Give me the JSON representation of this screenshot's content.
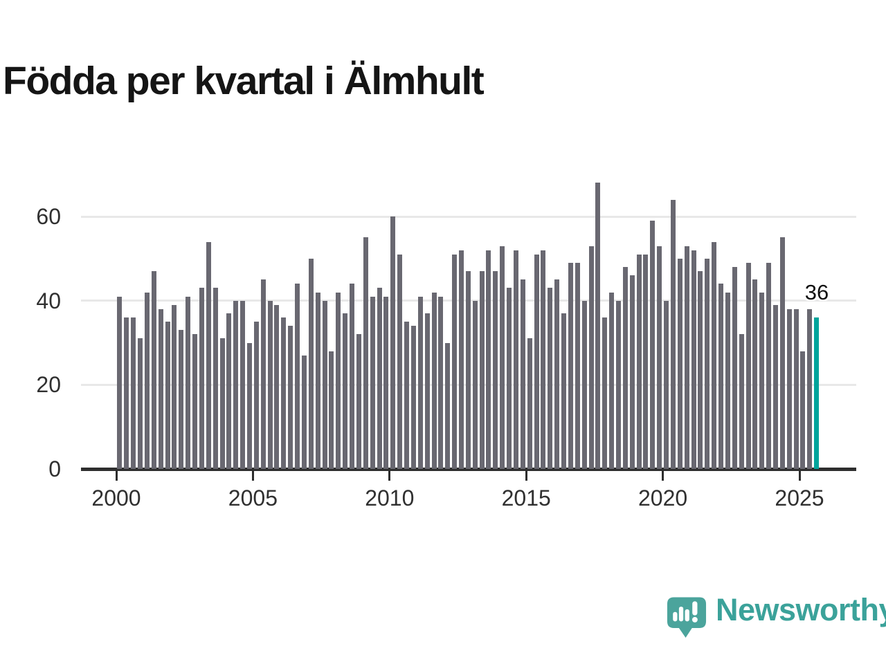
{
  "page": {
    "title": "Födda per kvartal i Älmhult"
  },
  "chart_data": {
    "type": "bar",
    "title": "Födda per kvartal i Älmhult",
    "x_start": "2000Q1",
    "x_end": "2025Q3",
    "period": "quarterly",
    "values": [
      41,
      36,
      36,
      31,
      42,
      47,
      38,
      35,
      39,
      33,
      41,
      32,
      43,
      54,
      43,
      31,
      37,
      40,
      40,
      30,
      35,
      45,
      40,
      39,
      36,
      34,
      44,
      27,
      50,
      42,
      40,
      28,
      42,
      37,
      44,
      32,
      55,
      41,
      43,
      41,
      60,
      51,
      35,
      34,
      41,
      37,
      42,
      41,
      30,
      51,
      52,
      47,
      40,
      47,
      52,
      47,
      53,
      43,
      52,
      45,
      31,
      51,
      52,
      43,
      45,
      37,
      49,
      49,
      40,
      53,
      68,
      36,
      42,
      40,
      48,
      46,
      51,
      51,
      59,
      53,
      40,
      64,
      50,
      53,
      52,
      47,
      50,
      54,
      44,
      42,
      48,
      32,
      49,
      45,
      42,
      49,
      39,
      55,
      38,
      38,
      28,
      38,
      36
    ],
    "highlight": {
      "index": 102,
      "label": "36",
      "color": "#00a49b"
    },
    "bar_color": "#696871",
    "y_ticks": [
      "0",
      "20",
      "40",
      "60"
    ],
    "y_tick_values": [
      0,
      20,
      40,
      60
    ],
    "x_tick_labels": [
      "2000",
      "2005",
      "2010",
      "2015",
      "2020",
      "2025"
    ],
    "x_tick_years": [
      2000,
      2005,
      2010,
      2015,
      2020,
      2025
    ],
    "ylim": [
      0,
      70
    ],
    "grid": true,
    "legend": false
  },
  "branding": {
    "name": "Newsworthy",
    "icon": "newsworthy-speech-bubble-chart-icon",
    "wordmark_color": "#3ba29a",
    "icon_color": "#4ba49c"
  }
}
